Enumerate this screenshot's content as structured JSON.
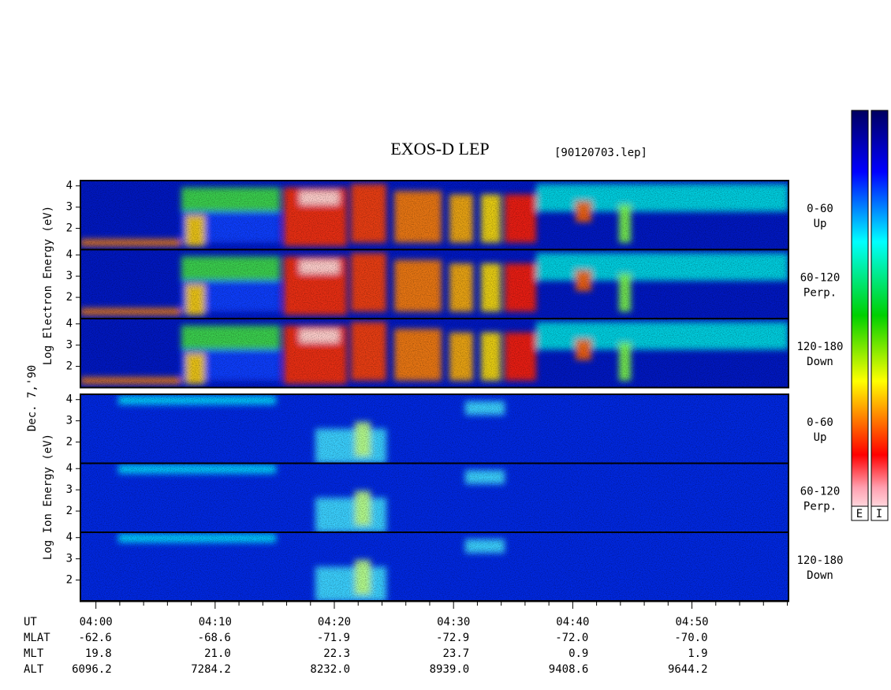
{
  "title": "EXOS-D LEP",
  "file": "[90120703.lep]",
  "date_label": "Dec. 7,'90",
  "electron_label": "Log Electron Energy (eV)",
  "ion_label": "Log Ion Energy (eV)",
  "ylim": [
    1,
    4.25
  ],
  "yticks": [
    2,
    3,
    4
  ],
  "electron_panels": [
    {
      "pitch": "0-60",
      "dir": "Up"
    },
    {
      "pitch": "60-120",
      "dir": "Perp."
    },
    {
      "pitch": "120-180",
      "dir": "Down"
    }
  ],
  "ion_panels": [
    {
      "pitch": "0-60",
      "dir": "Up"
    },
    {
      "pitch": "60-120",
      "dir": "Perp."
    },
    {
      "pitch": "120-180",
      "dir": "Down"
    }
  ],
  "xlim": [
    238.7,
    298.1
  ],
  "xticks": [
    {
      "value": 240,
      "label": "04:00"
    },
    {
      "value": 250,
      "label": "04:10"
    },
    {
      "value": 260,
      "label": "04:20"
    },
    {
      "value": 270,
      "label": "04:30"
    },
    {
      "value": 280,
      "label": "04:40"
    },
    {
      "value": 290,
      "label": "04:50"
    }
  ],
  "minor_xticks": [
    242,
    244,
    246,
    248,
    252,
    254,
    256,
    258,
    262,
    264,
    266,
    268,
    272,
    274,
    276,
    278,
    282,
    284,
    286,
    288,
    292,
    294,
    296,
    298
  ],
  "ephemeris": [
    {
      "label": "UT",
      "values": []
    },
    {
      "label": "MLAT",
      "values": [
        "-62.6",
        "-68.6",
        "-71.9",
        "-72.9",
        "-72.0",
        "-70.0"
      ]
    },
    {
      "label": "MLT",
      "values": [
        "19.8",
        "21.0",
        "22.3",
        "23.7",
        "0.9",
        "1.9"
      ]
    },
    {
      "label": "ALT",
      "values": [
        "6096.2",
        "7284.2",
        "8232.0",
        "8939.0",
        "9408.6",
        "9644.2"
      ]
    }
  ],
  "colorbars": [
    "E",
    "I"
  ]
}
